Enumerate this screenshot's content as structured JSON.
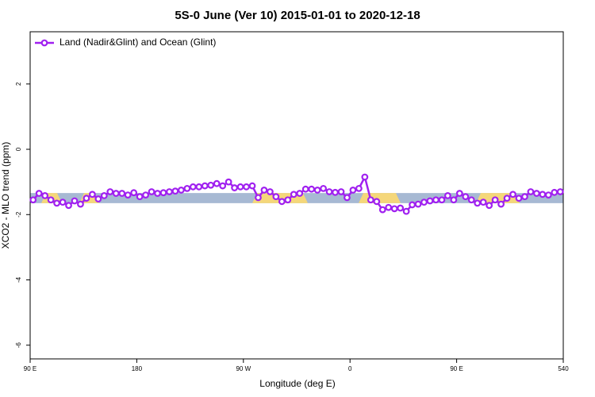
{
  "chart_data": {
    "type": "line",
    "title": "5S-0 June (Ver 10)   2015-01-01 to 2020-12-18",
    "x_label": "Longitude (deg E)",
    "y_label": "XCO2 - MLO trend (ppm)",
    "x": [
      92.5,
      97.5,
      102.5,
      107.5,
      112.5,
      117.5,
      122.5,
      127.5,
      132.5,
      137.5,
      142.5,
      147.5,
      152.5,
      157.5,
      162.5,
      167.5,
      172.5,
      177.5,
      182.5,
      187.5,
      192.5,
      197.5,
      202.5,
      207.5,
      212.5,
      217.5,
      222.5,
      227.5,
      232.5,
      237.5,
      242.5,
      247.5,
      252.5,
      257.5,
      262.5,
      267.5,
      272.5,
      277.5,
      282.5,
      287.5,
      292.5,
      297.5,
      302.5,
      307.5,
      312.5,
      317.5,
      322.5,
      327.5,
      332.5,
      337.5,
      342.5,
      347.5,
      352.5,
      357.5,
      362.5,
      367.5,
      372.5,
      377.5,
      382.5,
      387.5,
      392.5,
      397.5,
      402.5,
      407.5,
      412.5,
      417.5,
      422.5,
      427.5,
      432.5,
      437.5,
      442.5,
      447.5,
      452.5,
      457.5,
      462.5,
      467.5,
      472.5,
      477.5,
      482.5,
      487.5,
      492.5,
      497.5,
      502.5,
      507.5,
      512.5,
      517.5,
      522.5,
      527.5,
      532.5,
      537.5
    ],
    "series": [
      {
        "name": "Land (Nadir&Glint) and Ocean (Glint)",
        "color": "#a020f0",
        "values": [
          -1.55,
          -1.35,
          -1.42,
          -1.55,
          -1.65,
          -1.62,
          -1.72,
          -1.58,
          -1.68,
          -1.5,
          -1.38,
          -1.52,
          -1.42,
          -1.3,
          -1.35,
          -1.35,
          -1.4,
          -1.33,
          -1.45,
          -1.4,
          -1.3,
          -1.35,
          -1.33,
          -1.3,
          -1.28,
          -1.25,
          -1.2,
          -1.15,
          -1.15,
          -1.12,
          -1.1,
          -1.05,
          -1.12,
          -1.0,
          -1.18,
          -1.15,
          -1.15,
          -1.12,
          -1.48,
          -1.25,
          -1.3,
          -1.45,
          -1.6,
          -1.55,
          -1.38,
          -1.35,
          -1.22,
          -1.22,
          -1.25,
          -1.2,
          -1.3,
          -1.32,
          -1.3,
          -1.48,
          -1.25,
          -1.2,
          -0.85,
          -1.55,
          -1.6,
          -1.85,
          -1.78,
          -1.82,
          -1.8,
          -1.9,
          -1.7,
          -1.68,
          -1.62,
          -1.58,
          -1.55,
          -1.55,
          -1.42,
          -1.55,
          -1.35,
          -1.45,
          -1.55,
          -1.65,
          -1.62,
          -1.72,
          -1.55,
          -1.68,
          -1.5,
          -1.38,
          -1.5,
          -1.45,
          -1.3,
          -1.35,
          -1.38,
          -1.4,
          -1.32,
          -1.3
        ]
      }
    ],
    "band": {
      "range": [
        -1.65,
        -1.34
      ],
      "color": "#a7b9d3"
    },
    "xlim": [
      90,
      540
    ],
    "xticks": [
      {
        "value": 90,
        "label": "90 E"
      },
      180,
      {
        "value": 270,
        "label": "90 W"
      },
      {
        "value": 360,
        "label": "0"
      },
      {
        "value": 450,
        "label": "90 E"
      },
      540
    ],
    "ylim": [
      -6.42,
      3.6
    ],
    "yticks": [
      2,
      0,
      -2,
      -4,
      -6
    ],
    "legend": "top-left"
  }
}
